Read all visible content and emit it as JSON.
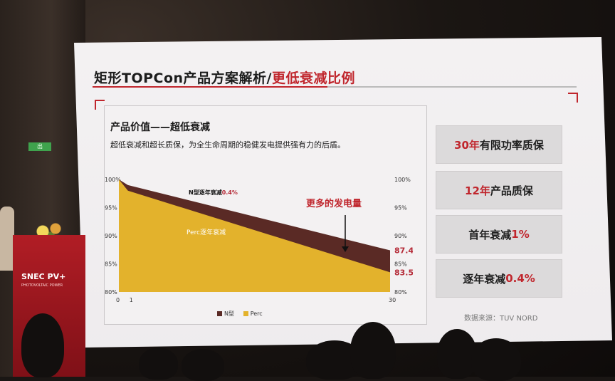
{
  "slide": {
    "title_main": "矩形TOPCon产品方案解析/",
    "title_accent": "更低衰减比例",
    "heading": "产品价值——超低衰减",
    "subtext": "超低衰减和超长质保，为全生命周期的稳健发电提供强有力的后盾。",
    "annotation": "更多的发电量",
    "n_label": "N型逐年衰减",
    "n_label_value": "0.4%",
    "perc_label": "Perc逐年衰减",
    "source": "数据来源：TUV NORD"
  },
  "chart_data": {
    "type": "area",
    "x_ticks": [
      "0",
      "1",
      "30"
    ],
    "y_ticks": [
      "100%",
      "95%",
      "90%",
      "85%",
      "80%"
    ],
    "ylim": [
      80,
      100
    ],
    "series": [
      {
        "name": "N型",
        "color": "#5a2a25",
        "x": [
          0,
          1,
          30
        ],
        "y": [
          100,
          99,
          87.4
        ]
      },
      {
        "name": "Perc",
        "color": "#e3b22c",
        "x": [
          0,
          1,
          30
        ],
        "y": [
          100,
          98,
          83.5
        ]
      }
    ],
    "end_labels": [
      "87.4%",
      "83.5%"
    ],
    "right_ticks": [
      "100%",
      "95%",
      "90%",
      "85%",
      "80%"
    ]
  },
  "cards": [
    {
      "accent": "30年",
      "text": "有限功率质保",
      "accent_first": true
    },
    {
      "accent": "12年",
      "text": "产品质保",
      "accent_first": true
    },
    {
      "accent": "1%",
      "text": "首年衰减",
      "accent_first": false
    },
    {
      "accent": "0.4%",
      "text": "逐年衰减",
      "accent_first": false
    }
  ],
  "podium": {
    "brand": "SNEC PV+",
    "sub": "PHOTOVOLTAIC POWER"
  },
  "exit_sign": "出"
}
